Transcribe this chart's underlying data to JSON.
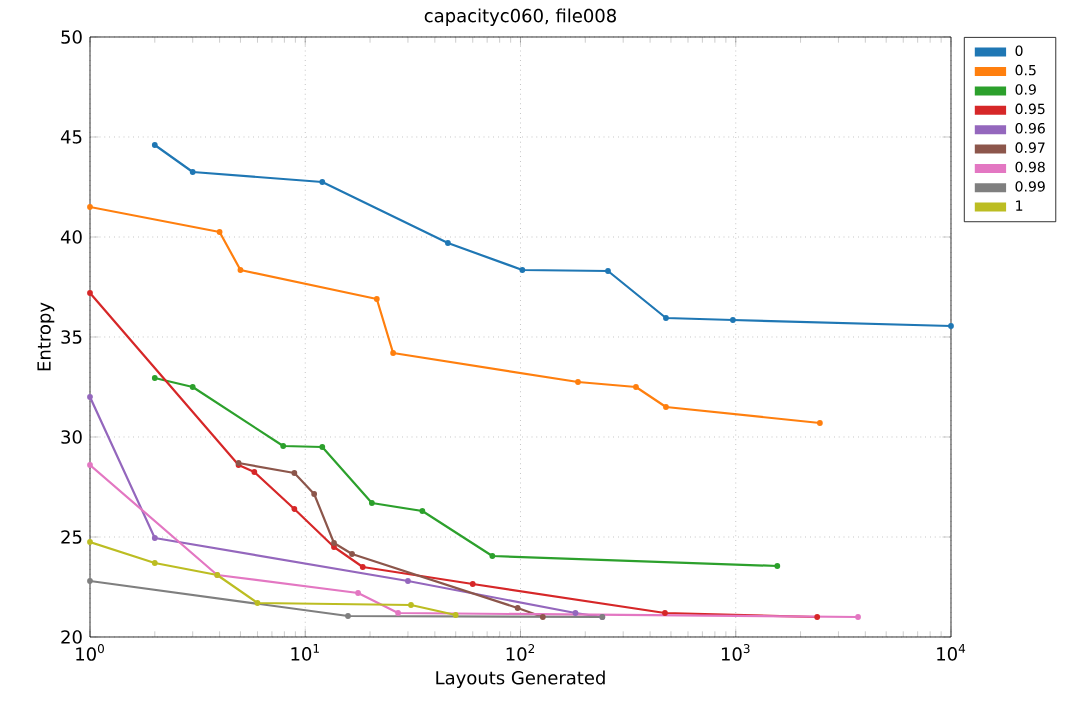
{
  "chart_data": {
    "type": "line",
    "title": "capacityc060, file008",
    "xlabel": "Layouts Generated",
    "ylabel": "Entropy",
    "log": "x",
    "grid": true,
    "legend": "right",
    "marker": "circle",
    "line_style": "solid",
    "xlim": [
      1,
      10000
    ],
    "ylim": [
      20,
      50
    ],
    "xticks": [
      {
        "value": 1,
        "label": "10$^{0}$"
      },
      {
        "value": 10,
        "label": "10$^{1}$"
      },
      {
        "value": 100,
        "label": "10$^{2}$"
      },
      {
        "value": 1000,
        "label": "10$^{3}$"
      },
      {
        "value": 10000,
        "label": "10$^{4}$"
      }
    ],
    "yticks": [
      20,
      25,
      30,
      35,
      40,
      45,
      50
    ],
    "series": [
      {
        "name": "0",
        "color": "#1f77b4",
        "x": [
          2,
          3,
          12,
          46,
          102,
          255,
          474,
          970,
          10000
        ],
        "values": [
          44.6,
          43.25,
          42.75,
          39.7,
          38.35,
          38.3,
          35.95,
          35.85,
          35.55
        ]
      },
      {
        "name": "0.5",
        "color": "#ff7f0e",
        "x": [
          1,
          4,
          5,
          21.5,
          25.6,
          185,
          344,
          474,
          2460
        ],
        "values": [
          41.5,
          40.25,
          38.35,
          36.9,
          34.2,
          32.75,
          32.5,
          31.5,
          30.7
        ]
      },
      {
        "name": "0.9",
        "color": "#2ca02c",
        "x": [
          2,
          3,
          7.9,
          12,
          20.4,
          35,
          74,
          1560
        ],
        "values": [
          32.95,
          32.5,
          29.55,
          29.5,
          26.7,
          26.3,
          24.05,
          23.55
        ]
      },
      {
        "name": "0.95",
        "color": "#d62728",
        "x": [
          1,
          4.9,
          5.8,
          8.9,
          13.6,
          18.5,
          60,
          469,
          2390
        ],
        "values": [
          37.2,
          28.6,
          28.25,
          26.4,
          24.5,
          23.5,
          22.65,
          21.2,
          21.0
        ]
      },
      {
        "name": "0.96",
        "color": "#9467bd",
        "x": [
          1,
          2,
          30,
          180,
          240
        ],
        "values": [
          32.0,
          24.95,
          22.8,
          21.2,
          21.0
        ]
      },
      {
        "name": "0.97",
        "color": "#8c564b",
        "x": [
          4.9,
          8.9,
          11,
          13.6,
          16.5,
          97,
          127
        ],
        "values": [
          28.7,
          28.2,
          27.15,
          24.7,
          24.15,
          21.45,
          21.0
        ]
      },
      {
        "name": "0.98",
        "color": "#e377c2",
        "x": [
          1,
          3.9,
          17.6,
          27,
          3700
        ],
        "values": [
          28.6,
          23.1,
          22.2,
          21.2,
          21.0
        ]
      },
      {
        "name": "0.99",
        "color": "#7f7f7f",
        "x": [
          1,
          15.8,
          240
        ],
        "values": [
          22.8,
          21.05,
          21.0
        ]
      },
      {
        "name": "1",
        "color": "#bcbd22",
        "x": [
          1,
          2,
          3.9,
          6,
          31,
          50
        ],
        "values": [
          24.75,
          23.7,
          23.1,
          21.7,
          21.6,
          21.1
        ]
      }
    ]
  }
}
